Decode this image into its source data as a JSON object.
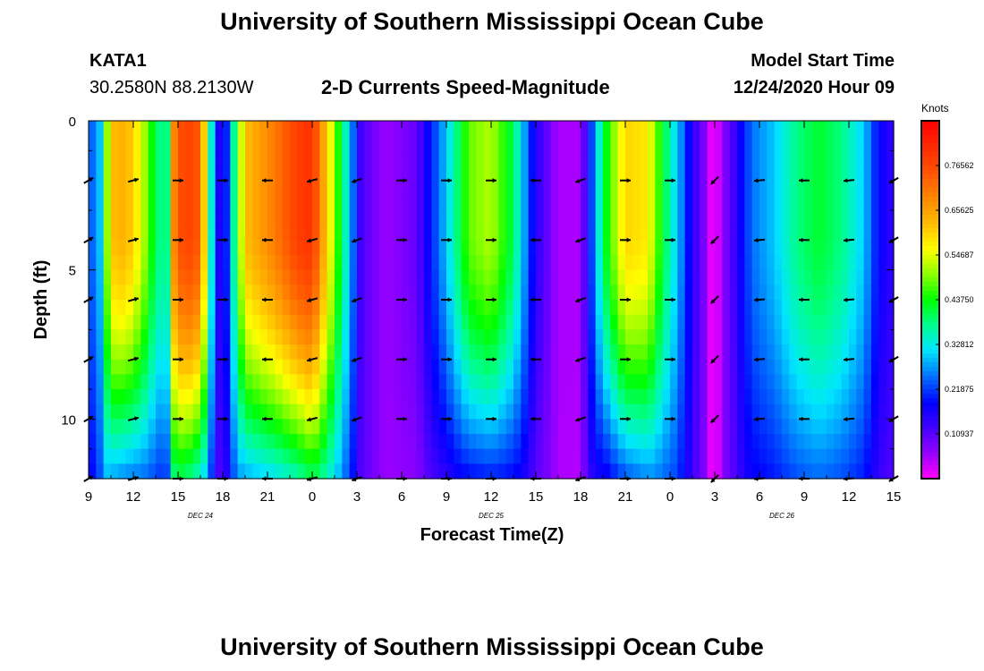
{
  "page": {
    "title_top": "University of Southern Mississippi Ocean Cube",
    "title_bottom": "University of Southern Mississippi Ocean Cube",
    "station_id": "KATA1",
    "station_coords": "30.2580N 88.2130W",
    "plot_title": "2-D Currents Speed-Magnitude",
    "model_label": "Model Start Time",
    "model_time": "12/24/2020 Hour 09"
  },
  "chart_data": {
    "type": "heatmap",
    "title": "2-D Currents Speed-Magnitude",
    "xlabel": "Forecast Time(Z)",
    "ylabel": "Depth (ft)",
    "x_tick_labels": [
      "9",
      "12",
      "15",
      "18",
      "21",
      "0",
      "3",
      "6",
      "9",
      "12",
      "15",
      "18",
      "21",
      "0",
      "3",
      "6",
      "9",
      "12",
      "15"
    ],
    "x_tick_hours": [
      0,
      3,
      6,
      9,
      12,
      15,
      18,
      21,
      24,
      27,
      30,
      33,
      36,
      39,
      42,
      45,
      48,
      51,
      54
    ],
    "x_range_hours": [
      0,
      54
    ],
    "date_labels": [
      {
        "text": "DEC 24",
        "hour": 7.5
      },
      {
        "text": "DEC 25",
        "hour": 27
      },
      {
        "text": "DEC 26",
        "hour": 46.5
      }
    ],
    "y_tick_labels": [
      "0",
      "5",
      "10"
    ],
    "y_tick_values": [
      0,
      5,
      10
    ],
    "y_range_ft": [
      0,
      12
    ],
    "colorbar": {
      "unit": "Knots",
      "labels": [
        "0.76562",
        "0.65625",
        "0.54687",
        "0.43750",
        "0.32812",
        "0.21875",
        "0.10937"
      ],
      "values": [
        0.76562,
        0.65625,
        0.54687,
        0.4375,
        0.32812,
        0.21875,
        0.10937
      ],
      "range": [
        0.0,
        0.875
      ]
    },
    "speed_profile": {
      "hours": [
        0,
        0.8,
        1.5,
        2.5,
        3.5,
        4.5,
        5.2,
        5.8,
        6.5,
        7.5,
        8.5,
        9.0,
        10.5,
        12.5,
        14,
        15,
        16.5,
        17.5,
        18.3,
        19,
        20,
        22,
        24,
        25.5,
        27,
        28.5,
        30,
        31.5,
        33,
        34.5,
        36,
        37.5,
        38.5,
        39.5,
        40.5,
        41.3,
        41.7,
        42,
        42.7,
        43.2,
        44.5,
        46,
        47.5,
        49,
        50.5,
        52,
        53,
        54
      ],
      "surface_speed": [
        0.22,
        0.3,
        0.62,
        0.64,
        0.55,
        0.4,
        0.35,
        0.72,
        0.78,
        0.74,
        0.2,
        0.12,
        0.62,
        0.7,
        0.78,
        0.8,
        0.5,
        0.3,
        0.12,
        0.09,
        0.06,
        0.1,
        0.3,
        0.48,
        0.52,
        0.4,
        0.15,
        0.05,
        0.05,
        0.4,
        0.6,
        0.58,
        0.42,
        0.3,
        0.15,
        0.08,
        0.02,
        0.0,
        0.08,
        0.12,
        0.25,
        0.3,
        0.38,
        0.42,
        0.38,
        0.3,
        0.18,
        0.14
      ],
      "bottom_factor": [
        0.75,
        0.78,
        0.45,
        0.4,
        0.45,
        0.55,
        0.58,
        0.55,
        0.5,
        0.45,
        0.7,
        0.8,
        0.45,
        0.45,
        0.45,
        0.5,
        0.62,
        0.72,
        0.9,
        1.0,
        0.95,
        0.7,
        0.48,
        0.38,
        0.38,
        0.45,
        0.7,
        0.95,
        0.9,
        0.4,
        0.38,
        0.45,
        0.58,
        0.72,
        0.85,
        1.0,
        1.0,
        1.0,
        1.0,
        0.9,
        0.7,
        0.65,
        0.6,
        0.58,
        0.6,
        0.65,
        0.75,
        0.8
      ]
    },
    "vector_hours": [
      0,
      3,
      6,
      9,
      12,
      15,
      18,
      21,
      24,
      27,
      30,
      33,
      36,
      39,
      42,
      45,
      48,
      51,
      54
    ],
    "vector_depths_ft": [
      2,
      4,
      6,
      8,
      10,
      12
    ],
    "vector_angles_deg": [
      30,
      15,
      0,
      0,
      180,
      195,
      200,
      0,
      0,
      0,
      180,
      200,
      0,
      0,
      225,
      185,
      180,
      185,
      210
    ]
  }
}
